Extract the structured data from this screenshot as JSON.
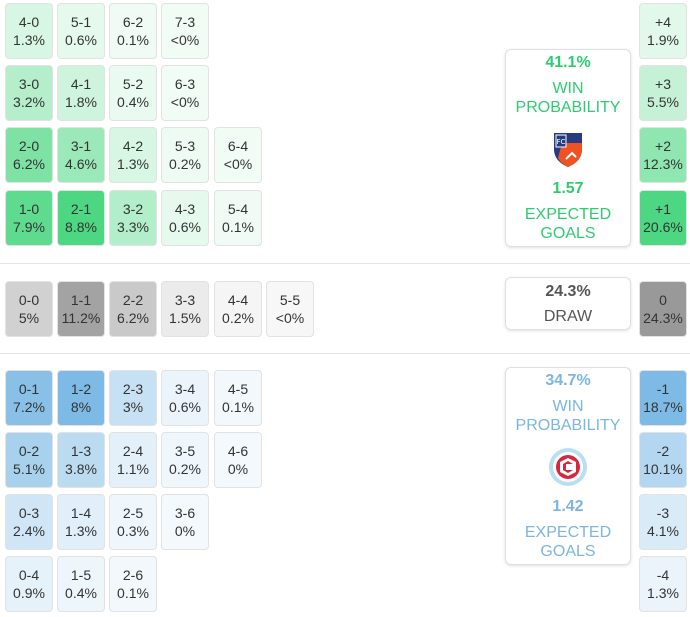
{
  "colors": {
    "home": "#2ecc71",
    "away": "#7ab6e0",
    "draw": "#555555"
  },
  "home": {
    "win_pct": "41.1%",
    "win_label": "WIN PROBABILITY",
    "xg": "1.57",
    "xg_label": "EXPECTED GOALS",
    "logo": "fc-cincinnati-crest-icon"
  },
  "draw": {
    "pct": "24.3%",
    "label": "DRAW"
  },
  "away": {
    "win_pct": "34.7%",
    "win_label": "WIN PROBABILITY",
    "xg": "1.42",
    "xg_label": "EXPECTED GOALS",
    "logo": "chicago-fire-crest-icon"
  },
  "home_scores": [
    [
      {
        "s": "4-0",
        "p": "1.3%"
      },
      {
        "s": "5-1",
        "p": "0.6%"
      },
      {
        "s": "6-2",
        "p": "0.1%"
      },
      {
        "s": "7-3",
        "p": "<0%"
      }
    ],
    [
      {
        "s": "3-0",
        "p": "3.2%"
      },
      {
        "s": "4-1",
        "p": "1.8%"
      },
      {
        "s": "5-2",
        "p": "0.4%"
      },
      {
        "s": "6-3",
        "p": "<0%"
      }
    ],
    [
      {
        "s": "2-0",
        "p": "6.2%"
      },
      {
        "s": "3-1",
        "p": "4.6%"
      },
      {
        "s": "4-2",
        "p": "1.3%"
      },
      {
        "s": "5-3",
        "p": "0.2%"
      },
      {
        "s": "6-4",
        "p": "<0%"
      }
    ],
    [
      {
        "s": "1-0",
        "p": "7.9%"
      },
      {
        "s": "2-1",
        "p": "8.8%"
      },
      {
        "s": "3-2",
        "p": "3.3%"
      },
      {
        "s": "4-3",
        "p": "0.6%"
      },
      {
        "s": "5-4",
        "p": "0.1%"
      }
    ]
  ],
  "draw_scores": [
    {
      "s": "0-0",
      "p": "5%"
    },
    {
      "s": "1-1",
      "p": "11.2%"
    },
    {
      "s": "2-2",
      "p": "6.2%"
    },
    {
      "s": "3-3",
      "p": "1.5%"
    },
    {
      "s": "4-4",
      "p": "0.2%"
    },
    {
      "s": "5-5",
      "p": "<0%"
    }
  ],
  "away_scores": [
    [
      {
        "s": "0-1",
        "p": "7.2%"
      },
      {
        "s": "1-2",
        "p": "8%"
      },
      {
        "s": "2-3",
        "p": "3%"
      },
      {
        "s": "3-4",
        "p": "0.6%"
      },
      {
        "s": "4-5",
        "p": "0.1%"
      }
    ],
    [
      {
        "s": "0-2",
        "p": "5.1%"
      },
      {
        "s": "1-3",
        "p": "3.8%"
      },
      {
        "s": "2-4",
        "p": "1.1%"
      },
      {
        "s": "3-5",
        "p": "0.2%"
      },
      {
        "s": "4-6",
        "p": "0%"
      }
    ],
    [
      {
        "s": "0-3",
        "p": "2.4%"
      },
      {
        "s": "1-4",
        "p": "1.3%"
      },
      {
        "s": "2-5",
        "p": "0.3%"
      },
      {
        "s": "3-6",
        "p": "0%"
      }
    ],
    [
      {
        "s": "0-4",
        "p": "0.9%"
      },
      {
        "s": "1-5",
        "p": "0.4%"
      },
      {
        "s": "2-6",
        "p": "0.1%"
      }
    ]
  ],
  "margins_home": [
    {
      "s": "+4",
      "p": "1.9%"
    },
    {
      "s": "+3",
      "p": "5.5%"
    },
    {
      "s": "+2",
      "p": "12.3%"
    },
    {
      "s": "+1",
      "p": "20.6%"
    }
  ],
  "margin_draw": {
    "s": "0",
    "p": "24.3%"
  },
  "margins_away": [
    {
      "s": "-1",
      "p": "18.7%"
    },
    {
      "s": "-2",
      "p": "10.1%"
    },
    {
      "s": "-3",
      "p": "4.1%"
    },
    {
      "s": "-4",
      "p": "1.3%"
    }
  ]
}
